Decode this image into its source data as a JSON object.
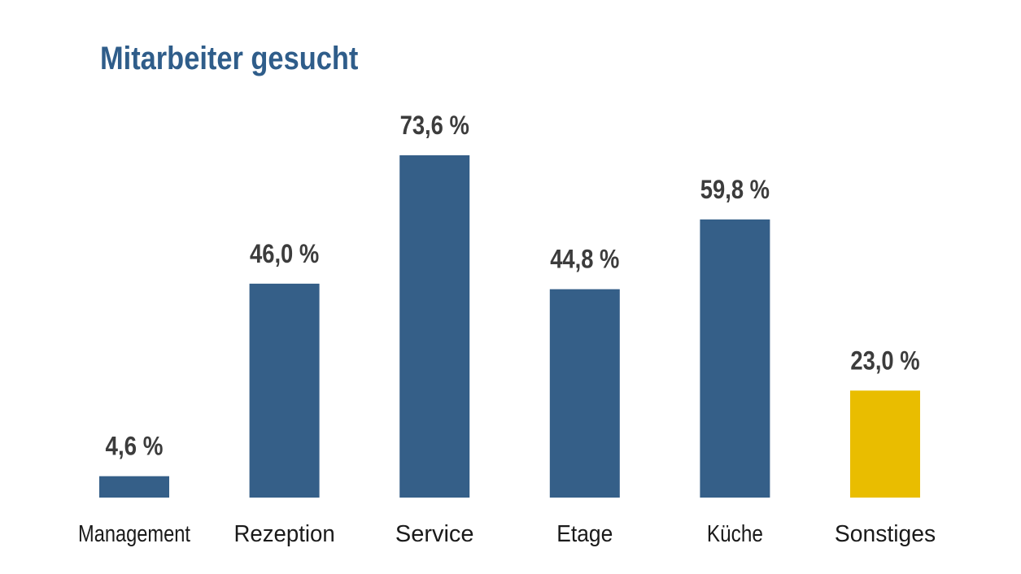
{
  "chart_data": {
    "type": "bar",
    "title": "Mitarbeiter gesucht",
    "xlabel": "",
    "ylabel": "",
    "ylim": [
      0,
      80
    ],
    "grid": false,
    "categories": [
      "Management",
      "Rezeption",
      "Service",
      "Etage",
      "Küche",
      "Sonstiges"
    ],
    "values": [
      4.6,
      46.0,
      73.6,
      44.8,
      59.8,
      23.0
    ],
    "value_labels": [
      "4,6 %",
      "46,0 %",
      "73,6 %",
      "44,8 %",
      "59,8 %",
      "23,0 %"
    ],
    "colors": [
      "#355f88",
      "#355f88",
      "#355f88",
      "#355f88",
      "#355f88",
      "#e9bd00"
    ]
  }
}
